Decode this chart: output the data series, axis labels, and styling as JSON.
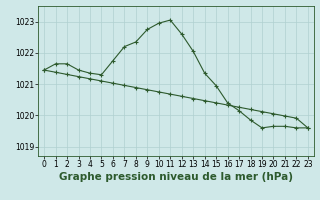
{
  "title": "Graphe pression niveau de la mer (hPa)",
  "background_color": "#cfe8e8",
  "grid_color": "#b0d0d0",
  "line_color": "#2d5a2d",
  "ylim": [
    1018.7,
    1023.5
  ],
  "yticks": [
    1019,
    1020,
    1021,
    1022,
    1023
  ],
  "xlim": [
    -0.5,
    23.5
  ],
  "xticks": [
    0,
    1,
    2,
    3,
    4,
    5,
    6,
    7,
    8,
    9,
    10,
    11,
    12,
    13,
    14,
    15,
    16,
    17,
    18,
    19,
    20,
    21,
    22,
    23
  ],
  "series1_x": [
    0,
    1,
    2,
    3,
    4,
    5,
    6,
    7,
    8,
    9,
    10,
    11,
    12,
    13,
    14,
    15,
    16,
    17,
    18,
    19,
    20,
    21,
    22,
    23
  ],
  "series1_y": [
    1021.45,
    1021.65,
    1021.65,
    1021.45,
    1021.35,
    1021.3,
    1021.75,
    1022.2,
    1022.35,
    1022.75,
    1022.95,
    1023.05,
    1022.6,
    1022.05,
    1021.35,
    1020.95,
    1020.4,
    1020.15,
    1019.85,
    1019.6,
    1019.65,
    1019.65,
    1019.6,
    1019.6
  ],
  "series2_x": [
    0,
    1,
    2,
    3,
    4,
    5,
    6,
    7,
    8,
    9,
    10,
    11,
    12,
    13,
    14,
    15,
    16,
    17,
    18,
    19,
    20,
    21,
    22,
    23
  ],
  "series2_y": [
    1021.45,
    1021.38,
    1021.31,
    1021.24,
    1021.17,
    1021.1,
    1021.03,
    1020.96,
    1020.89,
    1020.82,
    1020.75,
    1020.68,
    1020.61,
    1020.54,
    1020.47,
    1020.4,
    1020.33,
    1020.26,
    1020.19,
    1020.12,
    1020.05,
    1019.98,
    1019.91,
    1019.6
  ],
  "tick_fontsize": 5.5,
  "xlabel_fontsize": 7.5
}
